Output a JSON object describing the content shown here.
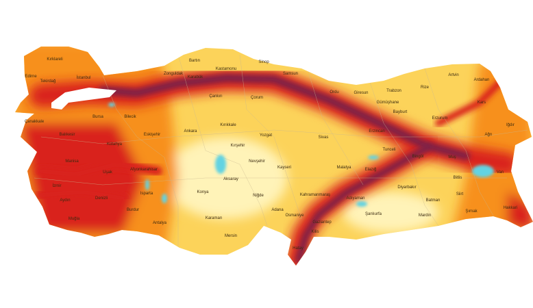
{
  "map": {
    "colors": {
      "low": "#fff3b8",
      "moderate": "#fcd35a",
      "high": "#f7901e",
      "very_high": "#d9241b",
      "extreme": "#7e2046",
      "water": "#62d3e2"
    },
    "provinces": [
      "Kırklareli",
      "Edirne",
      "Tekirdağ",
      "İstanbul",
      "Zonguldak",
      "Bartın",
      "Kastamonu",
      "Karabük",
      "Sinop",
      "Çankırı",
      "Çorum",
      "Bursa",
      "Bilecik",
      "Çanakkale",
      "Eskişehir",
      "Ankara",
      "Kırıkkale",
      "Yozgat",
      "Balıkesir",
      "Kütahya",
      "Kırşehir",
      "Samsun",
      "Ordu",
      "Giresun",
      "Trabzon",
      "Rize",
      "Artvin",
      "Ardahan",
      "Gümüşhane",
      "Kars",
      "Bayburt",
      "Erzurum",
      "Iğdır",
      "Ağrı",
      "Sivas",
      "Erzincan",
      "Manisa",
      "Uşak",
      "Afyonkarahisar",
      "İzmir",
      "Aydın",
      "Denizli",
      "Isparta",
      "Burdur",
      "Muğla",
      "Antalya",
      "Konya",
      "Aksaray",
      "Nevşehir",
      "Niğde",
      "Karaman",
      "Mersin",
      "Kayseri",
      "Tunceli",
      "Bingöl",
      "Muş",
      "Malatya",
      "Elazığ",
      "Van",
      "Bitlis",
      "Diyarbakır",
      "Kahramanmaraş",
      "Adıyaman",
      "Siirt",
      "Batman",
      "Adana",
      "Osmaniye",
      "Şanlıurfa",
      "Mardin",
      "Şırnak",
      "Hakkari",
      "Gaziantep",
      "Kilis",
      "Hatay"
    ]
  }
}
